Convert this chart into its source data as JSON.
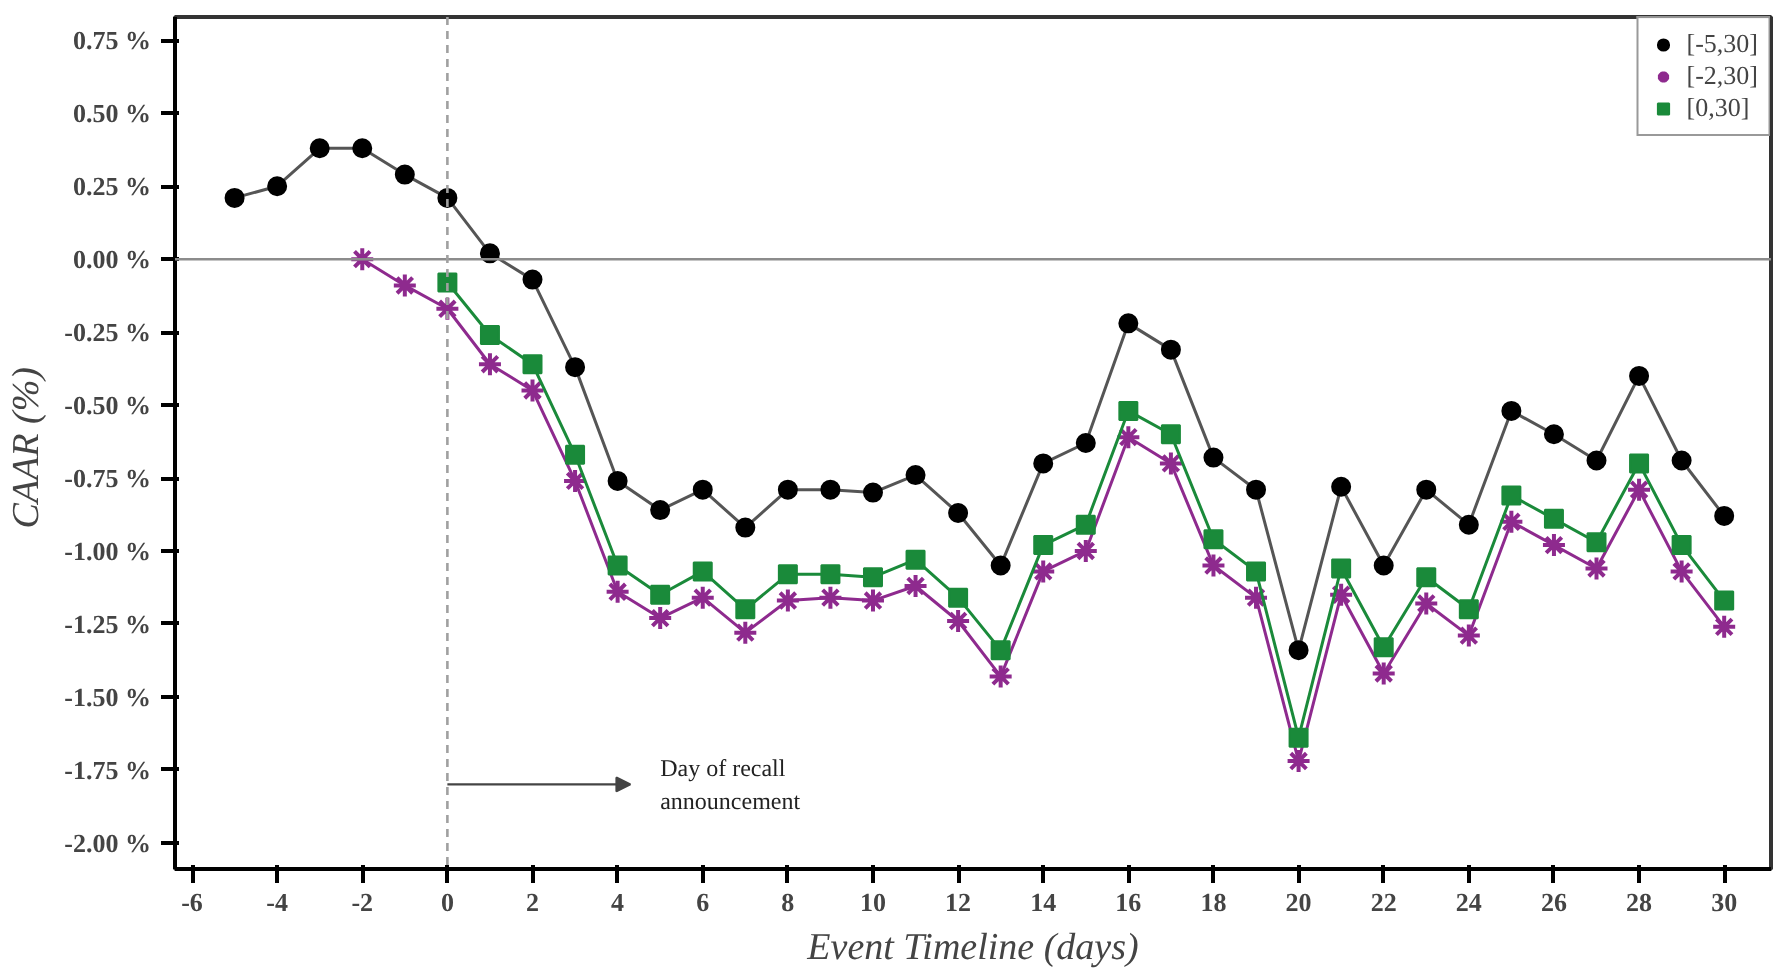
{
  "chart_data": {
    "type": "line",
    "xlabel": "Event Timeline (days)",
    "ylabel": "CAAR  (%)",
    "xlim": [
      -6.4,
      31.1
    ],
    "ylim": [
      -2.09,
      0.83
    ],
    "xticks": [
      -6,
      -4,
      -2,
      0,
      2,
      4,
      6,
      8,
      10,
      12,
      14,
      16,
      18,
      20,
      22,
      24,
      26,
      28,
      30
    ],
    "yticks": [
      {
        "value": 0.75,
        "label": "0.75 %"
      },
      {
        "value": 0.5,
        "label": "0.50 %"
      },
      {
        "value": 0.25,
        "label": "0.25 %"
      },
      {
        "value": 0,
        "label": "0.00 %"
      },
      {
        "value": -0.25,
        "label": "-0.25 %"
      },
      {
        "value": -0.5,
        "label": "-0.50 %"
      },
      {
        "value": -0.75,
        "label": "-0.75 %"
      },
      {
        "value": -1.0,
        "label": "-1.00 %"
      },
      {
        "value": -1.25,
        "label": "-1.25 %"
      },
      {
        "value": -1.5,
        "label": "-1.50 %"
      },
      {
        "value": -1.75,
        "label": "-1.75 %"
      },
      {
        "value": -2.0,
        "label": "-2.00 %"
      }
    ],
    "grid": false,
    "legend": "top right",
    "ref_lines": [
      {
        "axis": "y",
        "value": 0,
        "color": "#8c8c8c",
        "line_style": "solid"
      },
      {
        "axis": "x",
        "value": 0,
        "color": "#a0a0a0",
        "line_style": "dashed"
      }
    ],
    "annotations": [
      {
        "text": "Day of recall\nannouncement",
        "x": 0,
        "y": -1.8
      }
    ],
    "series": [
      {
        "name": "[-5,30]",
        "color": "#000000",
        "marker": "circle",
        "x": [
          -5,
          -4,
          -3,
          -2,
          -1,
          0,
          1,
          2,
          3,
          4,
          5,
          6,
          7,
          8,
          9,
          10,
          11,
          12,
          13,
          14,
          15,
          16,
          17,
          18,
          19,
          20,
          21,
          22,
          23,
          24,
          25,
          26,
          27,
          28,
          29,
          30
        ],
        "values": [
          0.21,
          0.25,
          0.38,
          0.38,
          0.29,
          0.21,
          0.02,
          -0.07,
          -0.37,
          -0.76,
          -0.86,
          -0.79,
          -0.92,
          -0.79,
          -0.79,
          -0.8,
          -0.74,
          -0.87,
          -1.05,
          -0.7,
          -0.63,
          -0.22,
          -0.31,
          -0.68,
          -0.79,
          -1.34,
          -0.78,
          -1.05,
          -0.79,
          -0.91,
          -0.52,
          -0.6,
          -0.69,
          -0.4,
          -0.69,
          -0.88
        ]
      },
      {
        "name": "[-2,30]",
        "color": "#8e2a8e",
        "marker": "cross",
        "x": [
          -2,
          -1,
          0,
          1,
          2,
          3,
          4,
          5,
          6,
          7,
          8,
          9,
          10,
          11,
          12,
          13,
          14,
          15,
          16,
          17,
          18,
          19,
          20,
          21,
          22,
          23,
          24,
          25,
          26,
          27,
          28,
          29,
          30
        ],
        "values": [
          0.0,
          -0.09,
          -0.17,
          -0.36,
          -0.45,
          -0.76,
          -1.14,
          -1.23,
          -1.16,
          -1.28,
          -1.17,
          -1.16,
          -1.17,
          -1.12,
          -1.24,
          -1.43,
          -1.07,
          -1.0,
          -0.61,
          -0.7,
          -1.05,
          -1.16,
          -1.72,
          -1.15,
          -1.42,
          -1.18,
          -1.29,
          -0.9,
          -0.98,
          -1.06,
          -0.79,
          -1.07,
          -1.26
        ]
      },
      {
        "name": "[0,30]",
        "color": "#1a8a3a",
        "marker": "square",
        "x": [
          0,
          1,
          2,
          3,
          4,
          5,
          6,
          7,
          8,
          9,
          10,
          11,
          12,
          13,
          14,
          15,
          16,
          17,
          18,
          19,
          20,
          21,
          22,
          23,
          24,
          25,
          26,
          27,
          28,
          29,
          30
        ],
        "values": [
          -0.08,
          -0.26,
          -0.36,
          -0.67,
          -1.05,
          -1.15,
          -1.07,
          -1.2,
          -1.08,
          -1.08,
          -1.09,
          -1.03,
          -1.16,
          -1.34,
          -0.98,
          -0.91,
          -0.52,
          -0.6,
          -0.96,
          -1.07,
          -1.64,
          -1.06,
          -1.33,
          -1.09,
          -1.2,
          -0.81,
          -0.89,
          -0.97,
          -0.7,
          -0.98,
          -1.17
        ]
      }
    ]
  }
}
